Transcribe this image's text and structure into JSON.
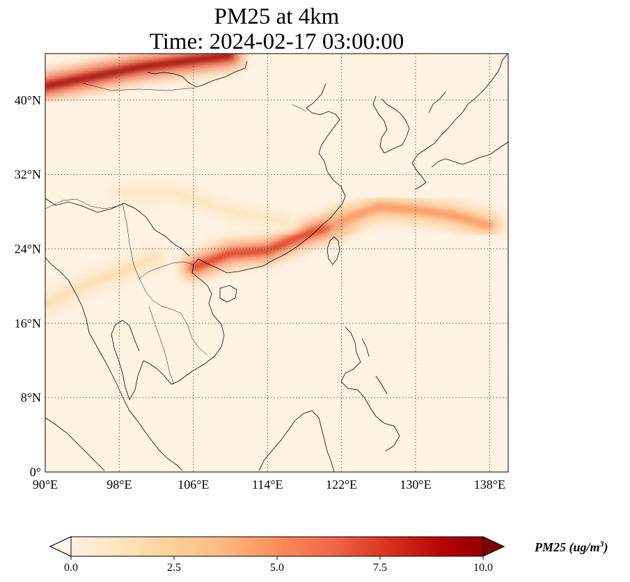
{
  "title": {
    "line1": "PM25 at 4km",
    "line2": "Time: 2024-02-17 03:00:00"
  },
  "map": {
    "projection": "PlateCarree",
    "lon_range": [
      90,
      140
    ],
    "lat_range": [
      0,
      45
    ],
    "lon_ticks": [
      {
        "value": 90,
        "label": "90°E"
      },
      {
        "value": 98,
        "label": "98°E"
      },
      {
        "value": 106,
        "label": "106°E"
      },
      {
        "value": 114,
        "label": "114°E"
      },
      {
        "value": 122,
        "label": "122°E"
      },
      {
        "value": 130,
        "label": "130°E"
      },
      {
        "value": 138,
        "label": "138°E"
      }
    ],
    "lat_ticks": [
      {
        "value": 0,
        "label": "0°"
      },
      {
        "value": 8,
        "label": "8°N"
      },
      {
        "value": 16,
        "label": "16°N"
      },
      {
        "value": 24,
        "label": "24°N"
      },
      {
        "value": 32,
        "label": "32°N"
      },
      {
        "value": 40,
        "label": "40°N"
      }
    ],
    "gridlines": "dotted",
    "colormap": "OrRd",
    "variable": "PM25",
    "pollution_bands": [
      {
        "name": "northern-plume",
        "path": [
          [
            90,
            41.5
          ],
          [
            95,
            42.5
          ],
          [
            100,
            43.5
          ],
          [
            106,
            44.3
          ],
          [
            110,
            44.8
          ]
        ],
        "level": 9.5
      },
      {
        "name": "south-china-plume",
        "path": [
          [
            106,
            22
          ],
          [
            110,
            23.5
          ],
          [
            114,
            23.8
          ],
          [
            118,
            25.5
          ],
          [
            122,
            26.8
          ]
        ],
        "level": 7.5
      },
      {
        "name": "east-china-sea-plume",
        "path": [
          [
            122,
            27
          ],
          [
            126,
            28.5
          ],
          [
            130,
            28.2
          ],
          [
            134,
            27.6
          ],
          [
            138,
            26.5
          ]
        ],
        "level": 5.0
      },
      {
        "name": "western-band",
        "path": [
          [
            90,
            18
          ],
          [
            94,
            20
          ],
          [
            98,
            21.5
          ],
          [
            102,
            23
          ]
        ],
        "level": 2.0
      },
      {
        "name": "central-haze",
        "path": [
          [
            98,
            30
          ],
          [
            104,
            30
          ],
          [
            110,
            28
          ],
          [
            116,
            27
          ]
        ],
        "level": 1.5
      }
    ]
  },
  "colorbar": {
    "min": 0,
    "max": 10,
    "extend": "both",
    "ticks": [
      "0.0",
      "2.5",
      "5.0",
      "7.5",
      "10.0"
    ],
    "label_main": "PM25 (ug/m",
    "label_sup": "3",
    "label_end": ")",
    "colors": [
      "#fff7ec",
      "#fee8c8",
      "#fdd49e",
      "#fdbb84",
      "#fc8d59",
      "#ef6548",
      "#d7301f",
      "#b30000",
      "#7f0000"
    ]
  }
}
